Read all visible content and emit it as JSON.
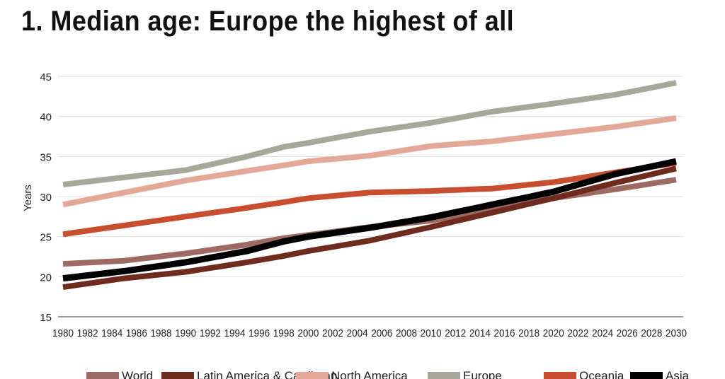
{
  "title": "1. Median age: Europe the highest of all",
  "chart_data": {
    "type": "line",
    "title": "1. Median age: Europe the highest of all",
    "xlabel": "",
    "ylabel": "Years",
    "xlim": [
      1980,
      2030
    ],
    "ylim": [
      15,
      45
    ],
    "yticks": [
      15,
      20,
      25,
      30,
      35,
      40,
      45
    ],
    "xticks": [
      1980,
      1982,
      1984,
      1986,
      1988,
      1990,
      1992,
      1994,
      1996,
      1998,
      2000,
      2002,
      2004,
      2006,
      2008,
      2010,
      2012,
      2014,
      2016,
      2018,
      2020,
      2022,
      2024,
      2026,
      2028,
      2030
    ],
    "grid": "horizontal",
    "legend_position": "bottom",
    "x": [
      1980,
      1985,
      1990,
      1995,
      1998,
      2000,
      2005,
      2010,
      2015,
      2020,
      2025,
      2030
    ],
    "series": [
      {
        "name": "World",
        "color": "#9e6b64",
        "values": [
          21.6,
          22.0,
          22.9,
          24.0,
          24.8,
          25.2,
          26.2,
          27.0,
          28.3,
          29.8,
          30.9,
          32.1
        ]
      },
      {
        "name": "Latin America & Carribean",
        "color": "#6e2b1e",
        "values": [
          18.7,
          19.8,
          20.6,
          21.8,
          22.6,
          23.2,
          24.5,
          26.2,
          28.0,
          29.8,
          31.7,
          33.5
        ]
      },
      {
        "name": "North America",
        "color": "#e4a898",
        "values": [
          29.0,
          30.5,
          32.0,
          33.2,
          33.9,
          34.4,
          35.1,
          36.3,
          36.9,
          37.8,
          38.7,
          39.8
        ]
      },
      {
        "name": "Europe",
        "color": "#a8a89a",
        "values": [
          31.5,
          32.4,
          33.3,
          35.0,
          36.2,
          36.7,
          38.1,
          39.2,
          40.6,
          41.6,
          42.7,
          44.2
        ]
      },
      {
        "name": "Oceania",
        "color": "#c84e30",
        "values": [
          25.3,
          26.4,
          27.5,
          28.6,
          29.3,
          29.8,
          30.5,
          30.7,
          31.0,
          31.8,
          33.0,
          34.2
        ]
      },
      {
        "name": "Asia",
        "color": "#000000",
        "values": [
          19.8,
          20.7,
          21.8,
          23.2,
          24.4,
          25.0,
          26.1,
          27.4,
          29.0,
          30.6,
          32.8,
          34.4
        ]
      }
    ]
  }
}
